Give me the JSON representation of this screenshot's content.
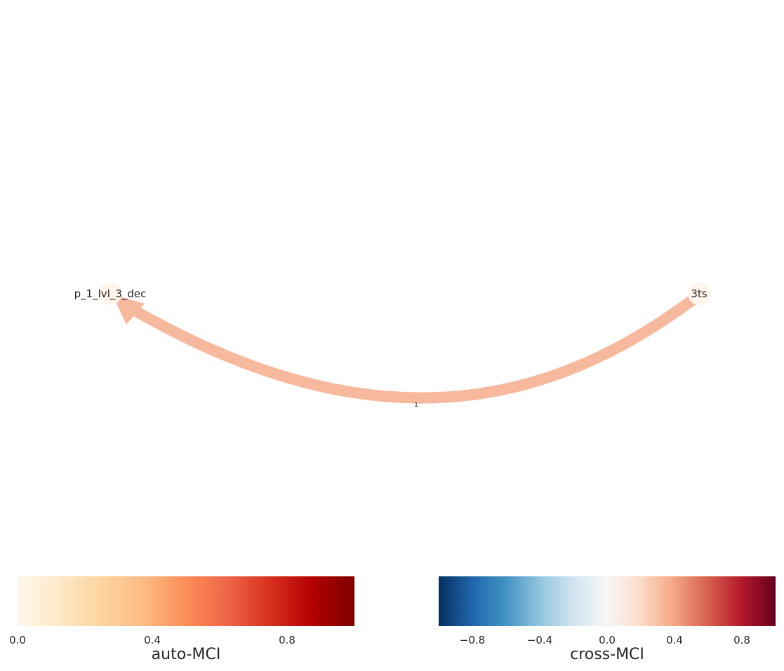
{
  "graph": {
    "nodes": [
      {
        "id": "p_1_lvl_3_dec",
        "label": "p_1_lvl_3_dec"
      },
      {
        "id": "3ts",
        "label": "3ts"
      }
    ],
    "edges": [
      {
        "source": "3ts",
        "target": "p_1_lvl_3_dec",
        "lag_label": "1"
      }
    ]
  },
  "colorbars": {
    "auto": {
      "title": "auto-MCI",
      "ticks": [
        "0.0",
        "0.4",
        "0.8"
      ],
      "tick_values": [
        0.0,
        0.4,
        0.8
      ],
      "range": [
        0.0,
        1.0
      ],
      "colormap": "OrRd",
      "stops": [
        "#fff7ec",
        "#fee8c8",
        "#fdd49e",
        "#fdbb84",
        "#fc8d59",
        "#ef6548",
        "#d7301f",
        "#b30000",
        "#7f0000"
      ]
    },
    "cross": {
      "title": "cross-MCI",
      "ticks": [
        "−0.8",
        "−0.4",
        "0.0",
        "0.4",
        "0.8"
      ],
      "tick_values": [
        -0.8,
        -0.4,
        0.0,
        0.4,
        0.8
      ],
      "range": [
        -1.0,
        1.0
      ],
      "colormap": "RdBu_r",
      "stops": [
        "#053061",
        "#2166ac",
        "#4393c3",
        "#92c5de",
        "#d1e5f0",
        "#f7f7f7",
        "#fddbc7",
        "#f4a582",
        "#d6604d",
        "#b2182b",
        "#67001f"
      ]
    }
  },
  "colors": {
    "edge": "#f7b99e",
    "node_fill": "#fff5eb"
  }
}
